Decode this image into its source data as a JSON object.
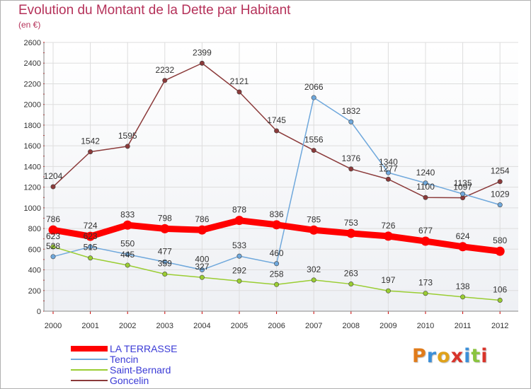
{
  "chart_data": {
    "type": "line",
    "title": "Evolution du Montant de la Dette par Habitant",
    "subtitle": "(en €)",
    "xlabel": "",
    "ylabel": "",
    "ylim": [
      0,
      2600
    ],
    "yticks": [
      "0",
      "200",
      "400",
      "600",
      "800",
      "1000",
      "1200",
      "1400",
      "1600",
      "1800",
      "2000",
      "2200",
      "2400",
      "2600"
    ],
    "categories": [
      "2000",
      "2001",
      "2002",
      "2003",
      "2004",
      "2005",
      "2006",
      "2007",
      "2008",
      "2009",
      "2010",
      "2011",
      "2012"
    ],
    "grid": true,
    "legend_position": "bottom-left",
    "series": [
      {
        "name": "LA TERRASSE",
        "color": "#ff0000",
        "emphasis": true,
        "values": [
          786,
          724,
          833,
          798,
          786,
          878,
          836,
          785,
          753,
          726,
          677,
          624,
          580
        ]
      },
      {
        "name": "Tencin",
        "color": "#6fa8dc",
        "values": [
          528,
          623,
          550,
          477,
          400,
          533,
          460,
          2066,
          1832,
          1340,
          1240,
          1135,
          1029
        ],
        "labels": [
          "528",
          "623",
          "550",
          "477",
          "400",
          "533",
          "460",
          "2066",
          "1832",
          "1340",
          "1240",
          "1135",
          "1029"
        ]
      },
      {
        "name": "Saint-Bernard",
        "color": "#9acd32",
        "values": [
          623,
          515,
          445,
          359,
          327,
          292,
          258,
          302,
          263,
          197,
          173,
          138,
          106
        ],
        "labels": [
          "623",
          "515",
          "445",
          "359",
          "327",
          "292",
          "258",
          "302",
          "263",
          "197",
          "173",
          "138",
          "106"
        ]
      },
      {
        "name": "Goncelin",
        "color": "#8b3a3a",
        "values": [
          1204,
          1542,
          1595,
          2232,
          2399,
          2121,
          1745,
          1556,
          1376,
          1277,
          1100,
          1097,
          1254
        ],
        "labels": [
          "1204",
          "1542",
          "1595",
          "2232",
          "2399",
          "2121",
          "1745",
          "1556",
          "1376",
          "1277",
          "1100",
          "1097",
          "1254"
        ]
      }
    ]
  },
  "logo": {
    "text": "Proxiti"
  },
  "colors": {
    "title": "#b5325a",
    "legend_text": "#3b3bd6",
    "grid": "#dddddd",
    "axis": "#888888"
  }
}
